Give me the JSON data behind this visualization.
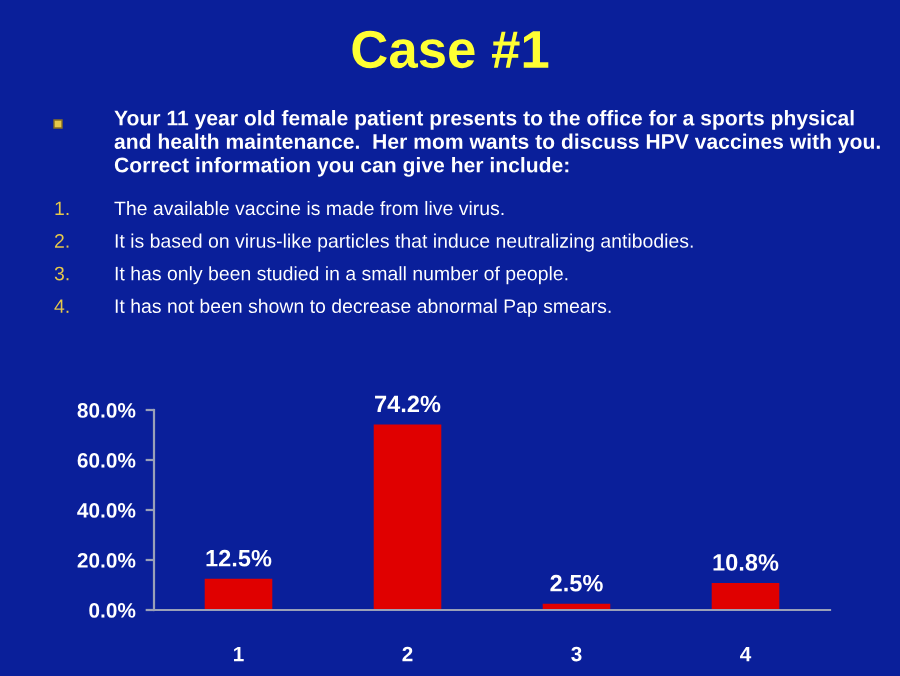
{
  "chart_data": {
    "type": "bar",
    "title": "Case #1",
    "subtitle": "Your 11 year old female patient presents to the office for a sports physical and health maintenance.  Her mom wants to discuss HPV vaccines with you.  Correct information you can give her include:",
    "annotations": [
      "1.",
      "The available vaccine is made from live virus.",
      "2.",
      "It is based on virus-like particles that induce neutralizing antibodies.",
      "3.",
      "It has only been studied in a small number of people.",
      "4.",
      "It has not been shown to decrease abnormal Pap smears."
    ],
    "categories": [
      "1",
      "2",
      "3",
      "4"
    ],
    "values": [
      12.5,
      74.2,
      2.5,
      10.8
    ],
    "value_labels": [
      "12.5%",
      "74.2%",
      "2.5%",
      "10.8%"
    ],
    "color": "#e00000",
    "ylim": [
      0,
      80
    ],
    "yticks": [
      {
        "value": 0,
        "label": "0.0%"
      },
      {
        "value": 20,
        "label": "20.0%"
      },
      {
        "value": 40,
        "label": "40.0%"
      },
      {
        "value": 60,
        "label": "60.0%"
      },
      {
        "value": 80,
        "label": "80.0%"
      }
    ],
    "grid": false,
    "legend": false
  }
}
